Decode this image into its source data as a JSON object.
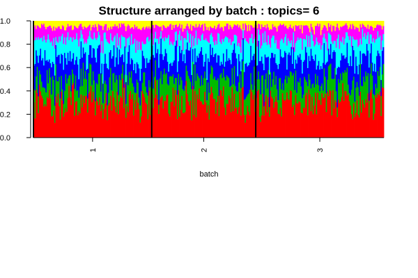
{
  "chart_data": {
    "type": "area",
    "stacked": true,
    "title": "Structure arranged by batch : topics= 6",
    "xlabel": "batch",
    "ylabel": "",
    "ylim": [
      0,
      1
    ],
    "y_ticks": [
      "0.0",
      "0.2",
      "0.4",
      "0.6",
      "0.8",
      "1.0"
    ],
    "groups": [
      {
        "label": "1",
        "samples": 108
      },
      {
        "label": "2",
        "samples": 95
      },
      {
        "label": "3",
        "samples": 117
      }
    ],
    "series": [
      {
        "color": "#ff0000",
        "mean_proportion": 0.3
      },
      {
        "color": "#00bb00",
        "mean_proportion": 0.18
      },
      {
        "color": "#0000ff",
        "mean_proportion": 0.2
      },
      {
        "color": "#00ffff",
        "mean_proportion": 0.16
      },
      {
        "color": "#ff00ff",
        "mean_proportion": 0.11
      },
      {
        "color": "#ffff00",
        "mean_proportion": 0.05
      }
    ],
    "grid": false,
    "legend": "none"
  }
}
